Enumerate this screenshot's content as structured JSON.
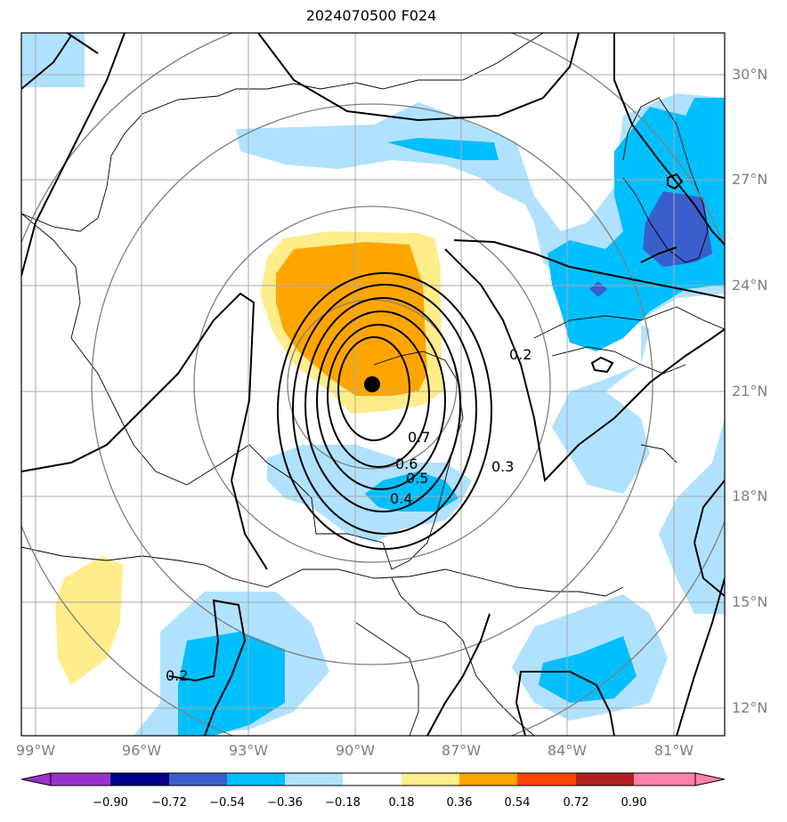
{
  "title": "2024070500 F024",
  "lat_labels": [
    "30°N",
    "27°N",
    "24°N",
    "21°N",
    "18°N",
    "15°N",
    "12°N"
  ],
  "lon_labels": [
    "99°W",
    "96°W",
    "93°W",
    "90°W",
    "87°W",
    "84°W",
    "81°W"
  ],
  "contour_labels": [
    "0.7",
    "0.6",
    "0.5",
    "0.4",
    "0.3",
    "0.2",
    "0.2"
  ],
  "colorbar": {
    "ticks": [
      "−0.90",
      "−0.72",
      "−0.54",
      "−0.36",
      "−0.18",
      "0.18",
      "0.36",
      "0.54",
      "0.72",
      "0.90"
    ],
    "colors": [
      "#9932cc",
      "#00008b",
      "#3a5fcd",
      "#00bfff",
      "#b0e2ff",
      "#ffffff",
      "#ffec8b",
      "#ffa500",
      "#ff4500",
      "#b22222",
      "#ff82ab"
    ]
  },
  "storm_center": {
    "lat": 21.2,
    "lon": "89.4°W"
  }
}
